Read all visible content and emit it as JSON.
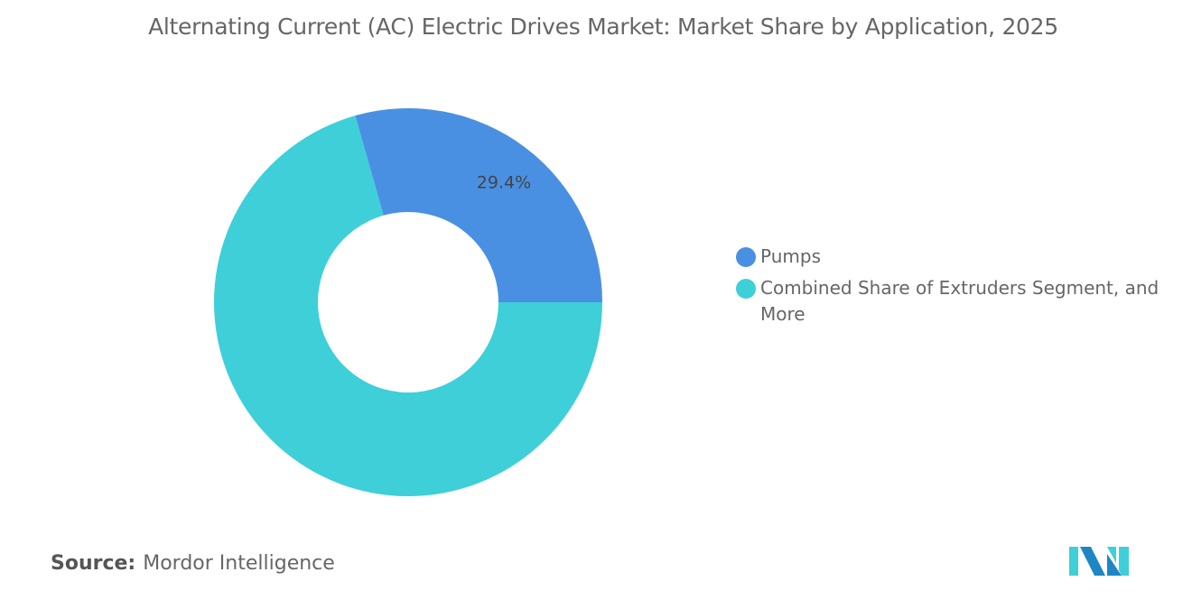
{
  "chart_data": {
    "type": "pie",
    "title": "Alternating Current (AC) Electric Drives Market: Market Share by Application, 2025",
    "categories": [
      "Pumps",
      "Combined Share of Extruders Segment, and More"
    ],
    "values": [
      29.4,
      70.6
    ],
    "data_labels": [
      "29.4%",
      ""
    ],
    "colors": [
      "#4a90e2",
      "#3ecfd9"
    ],
    "donut": true,
    "legend_position": "right"
  },
  "source": {
    "label": "Source:",
    "text": "Mordor Intelligence"
  },
  "logo": {
    "text": "Mordor Intelligence",
    "colors": [
      "#1e86c5",
      "#3ecfd9"
    ]
  }
}
